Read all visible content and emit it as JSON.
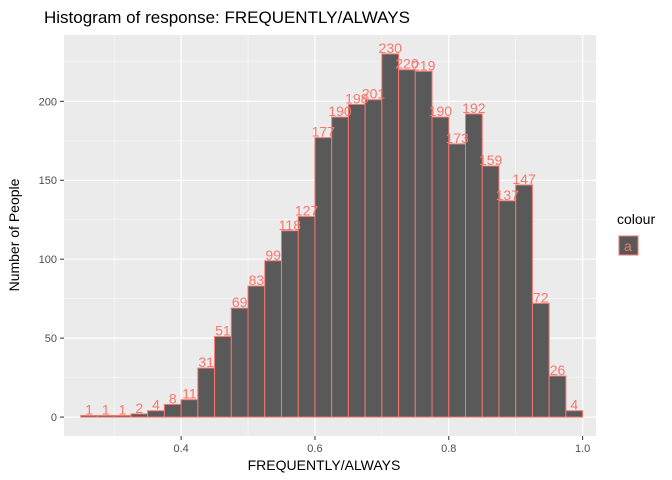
{
  "chart_data": {
    "type": "bar",
    "title": "Histogram of response: FREQUENTLY/ALWAYS",
    "xlabel": "FREQUENTLY/ALWAYS",
    "ylabel": "Number of People",
    "xlim": [
      0.225,
      1.02
    ],
    "ylim": [
      -12,
      242
    ],
    "x_ticks": [
      0.4,
      0.6,
      0.8,
      1.0
    ],
    "x_tick_labels": [
      "0.4",
      "0.6",
      "0.8",
      "1.0"
    ],
    "y_ticks": [
      0,
      50,
      100,
      150,
      200
    ],
    "y_tick_labels": [
      "0",
      "50",
      "100",
      "150",
      "200"
    ],
    "bin_width": 0.025,
    "bins_start": [
      0.25,
      0.275,
      0.3,
      0.325,
      0.35,
      0.375,
      0.4,
      0.425,
      0.45,
      0.475,
      0.5,
      0.525,
      0.55,
      0.575,
      0.6,
      0.625,
      0.65,
      0.675,
      0.7,
      0.725,
      0.75,
      0.775,
      0.8,
      0.825,
      0.85,
      0.875,
      0.9,
      0.925,
      0.95,
      0.975
    ],
    "values": [
      1,
      1,
      1,
      2,
      4,
      8,
      11,
      31,
      51,
      69,
      83,
      99,
      118,
      127,
      177,
      190,
      198,
      201,
      230,
      220,
      219,
      190,
      173,
      192,
      159,
      137,
      147,
      72,
      26,
      4
    ],
    "grid": true,
    "legend": {
      "title": "colour",
      "entries": [
        "a"
      ],
      "position": "right"
    }
  },
  "colors": {
    "panel_bg": "#EBEBEB",
    "grid_major": "#FFFFFF",
    "bar_fill": "#595959",
    "bar_outline": "#F8766D",
    "label_color": "#F8766D",
    "tick_color": "#4d4d4d"
  }
}
